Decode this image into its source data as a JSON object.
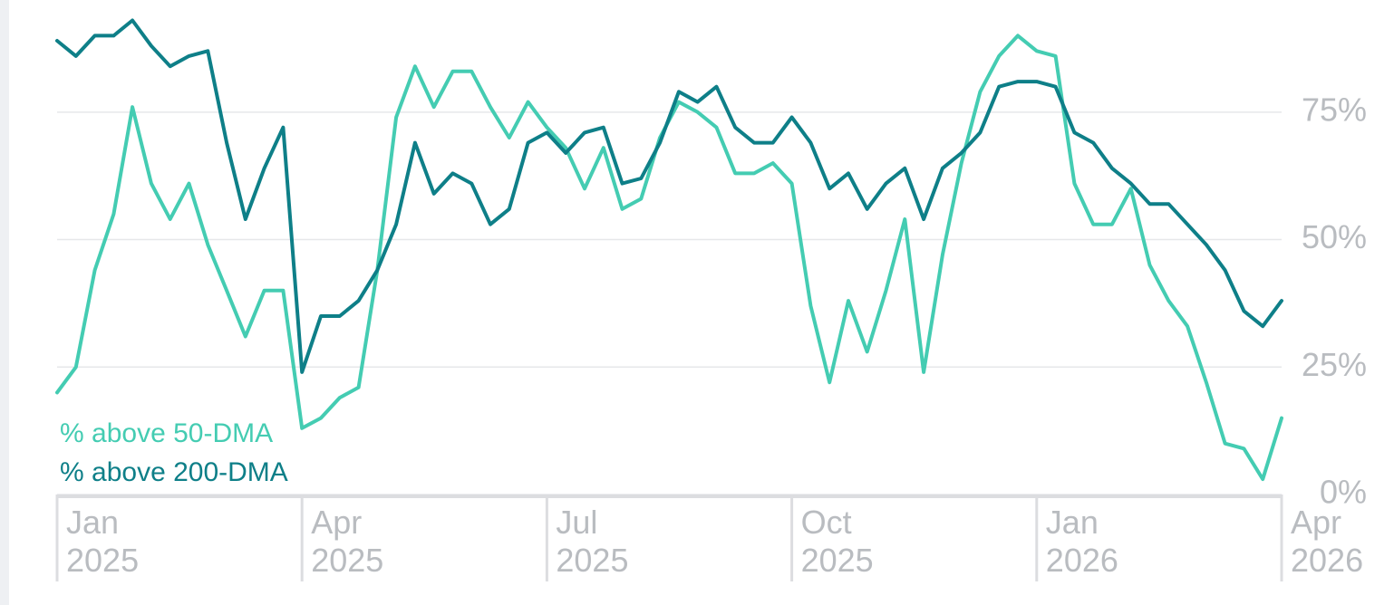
{
  "chart_data": {
    "type": "line",
    "categories": [
      "Jan\n2025",
      null,
      null,
      null,
      null,
      null,
      null,
      null,
      null,
      null,
      null,
      null,
      null,
      "Apr\n2025",
      null,
      null,
      null,
      null,
      null,
      null,
      null,
      null,
      null,
      null,
      null,
      null,
      "Jul\n2025",
      null,
      null,
      null,
      null,
      null,
      null,
      null,
      null,
      null,
      null,
      null,
      null,
      "Oct\n2025",
      null,
      null,
      null,
      null,
      null,
      null,
      null,
      null,
      null,
      null,
      null,
      null,
      "Jan\n2026",
      null,
      null,
      null,
      null,
      null,
      null,
      null,
      null,
      null,
      null,
      null,
      null,
      "Apr\n2026"
    ],
    "series": [
      {
        "name": "% above 50-DMA",
        "color": "#44ccb2",
        "values": [
          20,
          25,
          44,
          55,
          76,
          61,
          54,
          61,
          49,
          40,
          31,
          40,
          40,
          13,
          15,
          19,
          21,
          44,
          74,
          84,
          76,
          83,
          83,
          76,
          70,
          77,
          72,
          68,
          60,
          68,
          56,
          58,
          70,
          77,
          75,
          72,
          63,
          63,
          65,
          61,
          37,
          22,
          38,
          28,
          40,
          54,
          24,
          47,
          65,
          79,
          86,
          90,
          87,
          86,
          61,
          53,
          53,
          60,
          45,
          38,
          33,
          22,
          10,
          9,
          3,
          15
        ]
      },
      {
        "name": "% above 200-DMA",
        "color": "#0e7f88",
        "values": [
          89,
          86,
          90,
          90,
          93,
          88,
          84,
          86,
          87,
          69,
          54,
          64,
          72,
          24,
          35,
          35,
          38,
          44,
          53,
          69,
          59,
          63,
          61,
          53,
          56,
          69,
          71,
          67,
          71,
          72,
          61,
          62,
          69,
          79,
          77,
          80,
          72,
          69,
          69,
          74,
          69,
          60,
          63,
          56,
          61,
          64,
          54,
          64,
          67,
          71,
          80,
          81,
          81,
          80,
          71,
          69,
          64,
          61,
          57,
          57,
          53,
          49,
          44,
          36,
          33,
          38
        ]
      }
    ],
    "ylim": [
      0,
      97
    ],
    "yticks": [
      {
        "value": 0,
        "label": "0%"
      },
      {
        "value": 25,
        "label": "25%"
      },
      {
        "value": 50,
        "label": "50%"
      },
      {
        "value": 75,
        "label": "75%"
      }
    ],
    "grid": true
  }
}
